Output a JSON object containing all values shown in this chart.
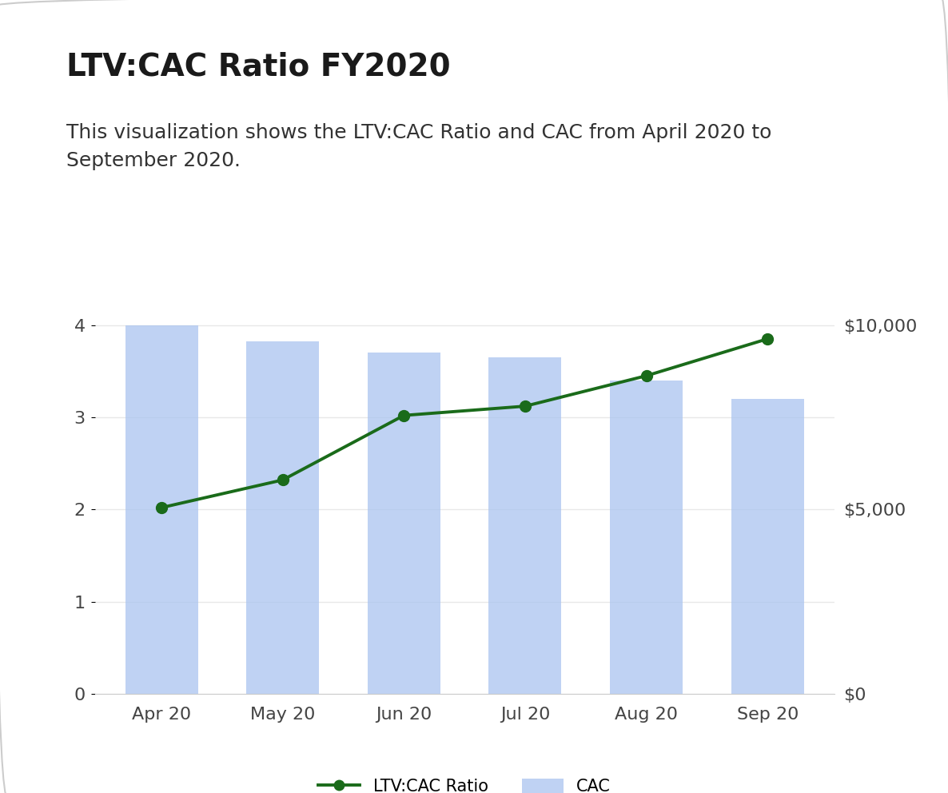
{
  "title": "LTV:CAC Ratio FY2020",
  "subtitle": "This visualization shows the LTV:CAC Ratio and CAC from April 2020 to\nSeptember 2020.",
  "categories": [
    "Apr 20",
    "May 20",
    "Jun 20",
    "Jul 20",
    "Aug 20",
    "Sep 20"
  ],
  "ltv_cac_ratio": [
    2.02,
    2.32,
    3.02,
    3.12,
    3.45,
    3.85
  ],
  "cac_bars": [
    4.0,
    3.82,
    3.7,
    3.65,
    3.4,
    3.2
  ],
  "bar_color": "#aac4f0",
  "bar_alpha": 0.75,
  "line_color": "#1a6b1a",
  "left_ylim": [
    0,
    4.3
  ],
  "left_yticks": [
    0,
    1,
    2,
    3,
    4
  ],
  "right_ylim": [
    0,
    10750
  ],
  "right_yticks": [
    0,
    5000,
    10000
  ],
  "right_yticklabels": [
    "$0",
    "$5,000",
    "$10,000"
  ],
  "background_color": "#ffffff",
  "border_color": "#cccccc",
  "title_fontsize": 28,
  "subtitle_fontsize": 18,
  "tick_fontsize": 16,
  "legend_fontsize": 15,
  "grid_color": "#e8e8e8",
  "legend_line_label": "LTV:CAC Ratio",
  "legend_bar_label": "CAC"
}
